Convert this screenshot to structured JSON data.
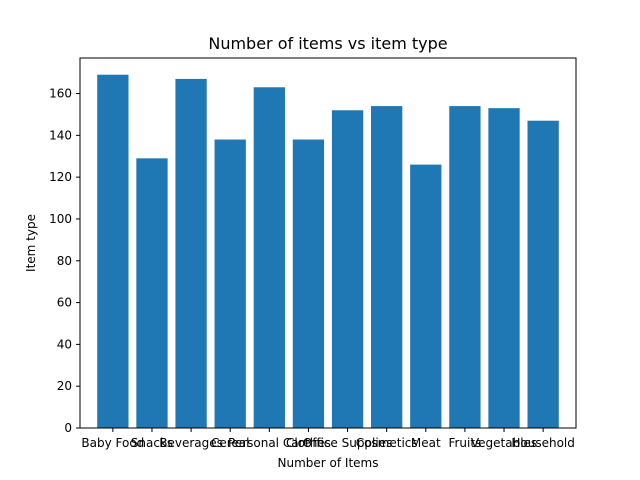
{
  "chart_data": {
    "type": "bar",
    "title": "Number of items vs item type",
    "xlabel": "Number of Items",
    "ylabel": "Item type",
    "categories": [
      "Baby Food",
      "Snacks",
      "Beverages",
      "Cereal",
      "Personal Care",
      "Clothes",
      "Office Supplies",
      "Cosmetics",
      "Meat",
      "Fruits",
      "Vegetables",
      "Household"
    ],
    "values": [
      169,
      129,
      167,
      138,
      163,
      138,
      152,
      154,
      126,
      154,
      153,
      147
    ],
    "ylim": [
      0,
      177
    ],
    "yticks": [
      0,
      20,
      40,
      60,
      80,
      100,
      120,
      140,
      160
    ],
    "bar_color": "#1f77b4",
    "grid": false
  }
}
